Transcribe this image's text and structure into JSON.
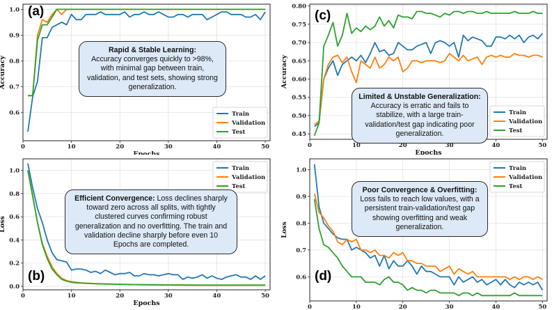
{
  "chart_data": [
    {
      "id": "a",
      "type": "line",
      "panel_label": "(a)",
      "xlabel": "Epochs",
      "ylabel": "Accuracy",
      "xlim": [
        0,
        51
      ],
      "ylim": [
        0.49,
        1.02
      ],
      "xticks": [
        0,
        10,
        20,
        30,
        40,
        50
      ],
      "yticks": [
        0.6,
        0.7,
        0.8,
        0.9,
        1.0
      ],
      "legend_position": "bottom-right",
      "x": [
        1,
        2,
        3,
        4,
        5,
        6,
        7,
        8,
        9,
        10,
        11,
        12,
        13,
        14,
        15,
        16,
        17,
        18,
        19,
        20,
        21,
        22,
        23,
        24,
        25,
        26,
        27,
        28,
        29,
        30,
        31,
        32,
        33,
        34,
        35,
        36,
        37,
        38,
        39,
        40,
        41,
        42,
        43,
        44,
        45,
        46,
        47,
        48,
        49,
        50
      ],
      "series": [
        {
          "name": "Train",
          "color": "#1f77b4",
          "values": [
            0.525,
            0.66,
            0.72,
            0.89,
            0.89,
            0.93,
            0.94,
            0.95,
            0.94,
            0.98,
            0.96,
            0.96,
            0.98,
            0.98,
            0.98,
            0.99,
            0.98,
            0.98,
            0.98,
            0.98,
            0.99,
            0.97,
            0.98,
            0.98,
            0.99,
            0.98,
            0.98,
            0.99,
            0.98,
            0.97,
            0.97,
            0.98,
            0.98,
            0.97,
            0.98,
            0.98,
            0.98,
            0.96,
            0.97,
            0.98,
            0.99,
            0.99,
            0.98,
            0.98,
            0.98,
            0.97,
            0.97,
            0.98,
            0.96,
            0.99
          ]
        },
        {
          "name": "Validation",
          "color": "#ff7f0e",
          "values": [
            0.665,
            0.665,
            0.9,
            0.96,
            0.95,
            0.98,
            1.0,
            0.98,
            1.0,
            1.0,
            1.0,
            1.0,
            1.0,
            1.0,
            1.0,
            1.0,
            1.0,
            1.0,
            1.0,
            1.0,
            1.0,
            1.0,
            1.0,
            1.0,
            1.0,
            1.0,
            1.0,
            1.0,
            1.0,
            1.0,
            1.0,
            1.0,
            1.0,
            1.0,
            1.0,
            1.0,
            1.0,
            1.0,
            1.0,
            1.0,
            1.0,
            1.0,
            1.0,
            1.0,
            1.0,
            1.0,
            1.0,
            1.0,
            1.0,
            1.0
          ]
        },
        {
          "name": "Test",
          "color": "#2ca02c",
          "values": [
            0.665,
            0.665,
            0.88,
            0.94,
            0.94,
            0.97,
            1.0,
            1.0,
            1.0,
            1.0,
            1.0,
            1.0,
            1.0,
            1.0,
            1.0,
            1.0,
            1.0,
            1.0,
            1.0,
            1.0,
            1.0,
            1.0,
            1.0,
            1.0,
            1.0,
            1.0,
            1.0,
            1.0,
            1.0,
            1.0,
            1.0,
            1.0,
            1.0,
            1.0,
            1.0,
            1.0,
            1.0,
            1.0,
            1.0,
            1.0,
            1.0,
            1.0,
            1.0,
            1.0,
            1.0,
            1.0,
            1.0,
            1.0,
            1.0,
            1.0
          ]
        }
      ],
      "annotation": {
        "title": "Rapid & Stable Learning:",
        "text": "Accuracy converges quickly to >98%, with minimal gap between train, validation, and test sets, showing strong generalization."
      }
    },
    {
      "id": "b",
      "type": "line",
      "panel_label": "(b)",
      "xlabel": "Epochs",
      "ylabel": "Loss",
      "xlim": [
        0,
        51
      ],
      "ylim": [
        -0.03,
        1.1
      ],
      "xticks": [
        0,
        10,
        20,
        30,
        40,
        50
      ],
      "yticks": [
        0.0,
        0.2,
        0.4,
        0.6,
        0.8,
        1.0
      ],
      "legend_position": "top-right",
      "x": [
        1,
        2,
        3,
        4,
        5,
        6,
        7,
        8,
        9,
        10,
        11,
        12,
        13,
        14,
        15,
        16,
        17,
        18,
        19,
        20,
        21,
        22,
        23,
        24,
        25,
        26,
        27,
        28,
        29,
        30,
        31,
        32,
        33,
        34,
        35,
        36,
        37,
        38,
        39,
        40,
        41,
        42,
        43,
        44,
        45,
        46,
        47,
        48,
        49,
        50
      ],
      "series": [
        {
          "name": "Train",
          "color": "#1f77b4",
          "values": [
            1.06,
            0.85,
            0.67,
            0.55,
            0.4,
            0.29,
            0.23,
            0.22,
            0.21,
            0.14,
            0.15,
            0.15,
            0.14,
            0.12,
            0.13,
            0.11,
            0.14,
            0.12,
            0.1,
            0.11,
            0.11,
            0.12,
            0.09,
            0.09,
            0.11,
            0.1,
            0.1,
            0.09,
            0.1,
            0.11,
            0.1,
            0.1,
            0.06,
            0.08,
            0.07,
            0.08,
            0.1,
            0.07,
            0.09,
            0.07,
            0.06,
            0.08,
            0.09,
            0.1,
            0.08,
            0.08,
            0.06,
            0.09,
            0.06,
            0.09
          ]
        },
        {
          "name": "Validation",
          "color": "#ff7f0e",
          "values": [
            1.0,
            0.78,
            0.55,
            0.37,
            0.26,
            0.17,
            0.11,
            0.07,
            0.05,
            0.04,
            0.035,
            0.03,
            0.028,
            0.025,
            0.023,
            0.022,
            0.02,
            0.02,
            0.018,
            0.017,
            0.016,
            0.016,
            0.015,
            0.015,
            0.014,
            0.014,
            0.013,
            0.013,
            0.013,
            0.012,
            0.012,
            0.012,
            0.011,
            0.011,
            0.011,
            0.011,
            0.01,
            0.01,
            0.01,
            0.01,
            0.01,
            0.01,
            0.01,
            0.01,
            0.01,
            0.01,
            0.01,
            0.01,
            0.01,
            0.01
          ]
        },
        {
          "name": "Test",
          "color": "#2ca02c",
          "values": [
            1.0,
            0.78,
            0.55,
            0.36,
            0.24,
            0.15,
            0.1,
            0.06,
            0.045,
            0.035,
            0.03,
            0.028,
            0.026,
            0.024,
            0.022,
            0.021,
            0.02,
            0.019,
            0.018,
            0.017,
            0.016,
            0.015,
            0.015,
            0.014,
            0.014,
            0.013,
            0.013,
            0.012,
            0.012,
            0.012,
            0.011,
            0.011,
            0.011,
            0.01,
            0.01,
            0.01,
            0.01,
            0.01,
            0.01,
            0.01,
            0.01,
            0.01,
            0.01,
            0.01,
            0.01,
            0.01,
            0.01,
            0.01,
            0.01,
            0.01
          ]
        }
      ],
      "annotation": {
        "title": "Efficient Convergence:",
        "text": "Loss declines sharply toward zero across all splits, with tightly clustered curves confirming robust generalization and no overfitting. The train and validation decline sharply before even 10 Epochs are completed."
      }
    },
    {
      "id": "c",
      "type": "line",
      "panel_label": "(c)",
      "xlabel": "Epochs",
      "ylabel": "Accuracy",
      "xlim": [
        0,
        51
      ],
      "ylim": [
        0.435,
        0.805
      ],
      "xticks": [
        0,
        10,
        20,
        30,
        40,
        50
      ],
      "yticks": [
        0.45,
        0.5,
        0.55,
        0.6,
        0.65,
        0.7,
        0.75,
        0.8
      ],
      "legend_position": "bottom-right",
      "x": [
        1,
        2,
        3,
        4,
        5,
        6,
        7,
        8,
        9,
        10,
        11,
        12,
        13,
        14,
        15,
        16,
        17,
        18,
        19,
        20,
        21,
        22,
        23,
        24,
        25,
        26,
        27,
        28,
        29,
        30,
        31,
        32,
        33,
        34,
        35,
        36,
        37,
        38,
        39,
        40,
        41,
        42,
        43,
        44,
        45,
        46,
        47,
        48,
        49,
        50
      ],
      "series": [
        {
          "name": "Train",
          "color": "#1f77b4",
          "values": [
            0.47,
            0.48,
            0.6,
            0.63,
            0.65,
            0.61,
            0.64,
            0.65,
            0.66,
            0.65,
            0.665,
            0.645,
            0.67,
            0.7,
            0.675,
            0.68,
            0.665,
            0.67,
            0.7,
            0.69,
            0.68,
            0.68,
            0.69,
            0.695,
            0.7,
            0.67,
            0.7,
            0.705,
            0.7,
            0.69,
            0.7,
            0.66,
            0.72,
            0.705,
            0.715,
            0.71,
            0.705,
            0.69,
            0.69,
            0.715,
            0.715,
            0.71,
            0.72,
            0.71,
            0.72,
            0.7,
            0.715,
            0.72,
            0.71,
            0.725
          ]
        },
        {
          "name": "Validation",
          "color": "#ff7f0e",
          "values": [
            0.475,
            0.485,
            0.6,
            0.64,
            0.66,
            0.665,
            0.645,
            0.66,
            0.62,
            0.59,
            0.65,
            0.64,
            0.63,
            0.66,
            0.63,
            0.64,
            0.66,
            0.65,
            0.66,
            0.62,
            0.63,
            0.65,
            0.65,
            0.645,
            0.65,
            0.65,
            0.65,
            0.645,
            0.65,
            0.67,
            0.66,
            0.65,
            0.665,
            0.65,
            0.655,
            0.66,
            0.64,
            0.66,
            0.665,
            0.66,
            0.665,
            0.66,
            0.66,
            0.67,
            0.665,
            0.665,
            0.66,
            0.665,
            0.665,
            0.66
          ]
        },
        {
          "name": "Test",
          "color": "#2ca02c",
          "values": [
            0.445,
            0.48,
            0.69,
            0.72,
            0.755,
            0.69,
            0.72,
            0.78,
            0.725,
            0.74,
            0.73,
            0.745,
            0.735,
            0.745,
            0.77,
            0.745,
            0.76,
            0.74,
            0.775,
            0.77,
            0.77,
            0.765,
            0.785,
            0.785,
            0.78,
            0.78,
            0.775,
            0.77,
            0.78,
            0.775,
            0.785,
            0.785,
            0.78,
            0.785,
            0.785,
            0.78,
            0.78,
            0.785,
            0.78,
            0.78,
            0.78,
            0.78,
            0.78,
            0.785,
            0.78,
            0.78,
            0.78,
            0.785,
            0.78,
            0.78
          ]
        }
      ],
      "annotation": {
        "title": "Limited & Unstable Generalization:",
        "text": "Accuracy is erratic and fails to stabilize, with a large train-validation/test gap indicating poor generalization."
      }
    },
    {
      "id": "d",
      "type": "line",
      "panel_label": "(d)",
      "xlabel": "Epochs",
      "ylabel": "Loss",
      "xlim": [
        0,
        51
      ],
      "ylim": [
        0.51,
        1.04
      ],
      "xticks": [
        0,
        10,
        20,
        30,
        40,
        50
      ],
      "yticks": [
        0.6,
        0.7,
        0.8,
        0.9,
        1.0
      ],
      "legend_position": "top-right",
      "x": [
        1,
        2,
        3,
        4,
        5,
        6,
        7,
        8,
        9,
        10,
        11,
        12,
        13,
        14,
        15,
        16,
        17,
        18,
        19,
        20,
        21,
        22,
        23,
        24,
        25,
        26,
        27,
        28,
        29,
        30,
        31,
        32,
        33,
        34,
        35,
        36,
        37,
        38,
        39,
        40,
        41,
        42,
        43,
        44,
        45,
        46,
        47,
        48,
        49,
        50
      ],
      "series": [
        {
          "name": "Train",
          "color": "#1f77b4",
          "values": [
            1.02,
            0.86,
            0.8,
            0.78,
            0.76,
            0.745,
            0.74,
            0.74,
            0.7,
            0.71,
            0.7,
            0.69,
            0.67,
            0.68,
            0.64,
            0.68,
            0.63,
            0.66,
            0.64,
            0.64,
            0.66,
            0.64,
            0.61,
            0.64,
            0.62,
            0.62,
            0.61,
            0.6,
            0.6,
            0.6,
            0.57,
            0.6,
            0.58,
            0.59,
            0.6,
            0.58,
            0.59,
            0.57,
            0.58,
            0.59,
            0.57,
            0.59,
            0.57,
            0.56,
            0.58,
            0.57,
            0.58,
            0.57,
            0.58,
            0.55
          ]
        },
        {
          "name": "Validation",
          "color": "#ff7f0e",
          "values": [
            0.91,
            0.84,
            0.82,
            0.79,
            0.77,
            0.73,
            0.72,
            0.74,
            0.73,
            0.74,
            0.7,
            0.7,
            0.69,
            0.7,
            0.68,
            0.68,
            0.67,
            0.69,
            0.68,
            0.69,
            0.66,
            0.66,
            0.65,
            0.65,
            0.64,
            0.64,
            0.64,
            0.62,
            0.63,
            0.64,
            0.61,
            0.63,
            0.62,
            0.61,
            0.62,
            0.6,
            0.6,
            0.6,
            0.6,
            0.6,
            0.6,
            0.6,
            0.59,
            0.6,
            0.59,
            0.6,
            0.6,
            0.59,
            0.6,
            0.59
          ]
        },
        {
          "name": "Test",
          "color": "#2ca02c",
          "values": [
            0.89,
            0.78,
            0.72,
            0.71,
            0.69,
            0.67,
            0.64,
            0.62,
            0.6,
            0.6,
            0.6,
            0.58,
            0.58,
            0.58,
            0.57,
            0.59,
            0.6,
            0.58,
            0.58,
            0.57,
            0.55,
            0.56,
            0.55,
            0.55,
            0.54,
            0.55,
            0.55,
            0.54,
            0.54,
            0.54,
            0.54,
            0.53,
            0.54,
            0.54,
            0.53,
            0.54,
            0.53,
            0.53,
            0.53,
            0.53,
            0.53,
            0.53,
            0.53,
            0.54,
            0.53,
            0.53,
            0.53,
            0.53,
            0.53,
            0.53
          ]
        }
      ],
      "annotation": {
        "title": "Poor Convergence & Overfitting:",
        "text": "Loss fails to reach low values, with a persistent train-validation/test gap showing overfitting and weak generalization."
      }
    }
  ]
}
